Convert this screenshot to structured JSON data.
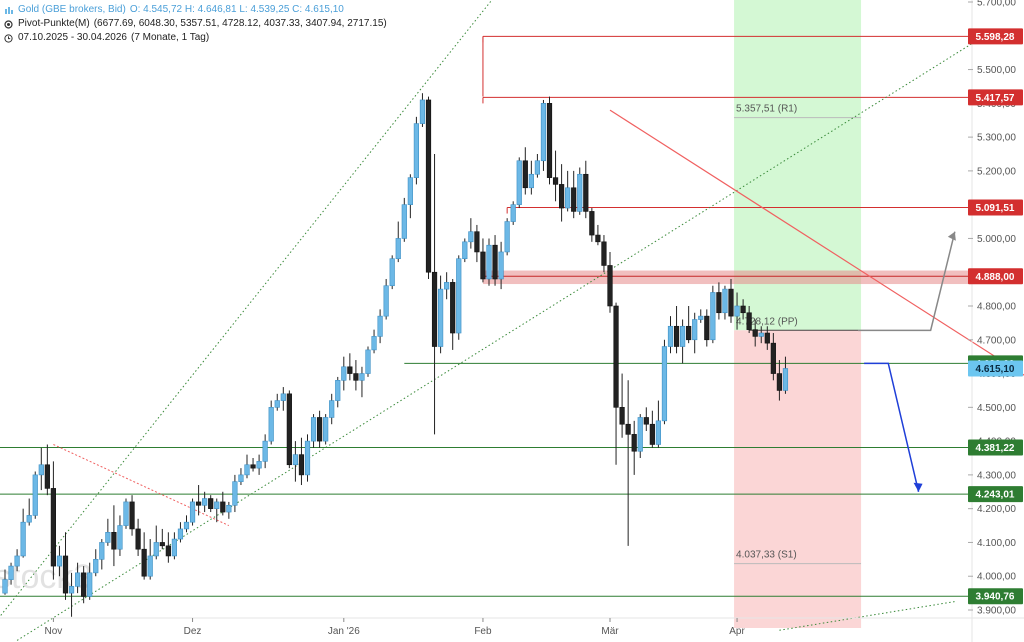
{
  "legend": {
    "instrument": "Gold (GBE brokers, Bid)",
    "ohlc": "O: 4.545,72  H: 4.646,81  L: 4.539,25  C: 4.615,10",
    "pivot": "Pivot-Punkte(M)",
    "pivot_values": "(6677.69, 6048.30, 5357.51, 4728.12, 4037.33, 3407.94, 2717.15)",
    "range": "07.10.2025 - 30.04.2026",
    "range_detail": "(7 Monate, 1 Tag)"
  },
  "watermark": "stock3",
  "colors": {
    "up": "#6cb8e6",
    "down": "#222222",
    "res": "#d32f2f",
    "sup": "#2e7d32",
    "price": "#4fb0e8",
    "trend": "#f06060",
    "arrow": "#1f3fd8",
    "gray": "#888888"
  },
  "chart_data": {
    "type": "candlestick",
    "instrument": "Gold (GBE brokers, Bid)",
    "ylim": [
      3860,
      5700
    ],
    "y_ticks": [
      "3.900,00",
      "4.000,00",
      "4.100,00",
      "4.200,00",
      "4.300,00",
      "4.400,00",
      "4.500,00",
      "4.600,00",
      "4.700,00",
      "4.800,00",
      "4.900,00",
      "5.000,00",
      "5.100,00",
      "5.200,00",
      "5.300,00",
      "5.400,00",
      "5.500,00",
      "5.600,00",
      "5.700,00"
    ],
    "x_ticks": [
      "Nov",
      "Dez",
      "Jan '26",
      "Feb",
      "Mär",
      "Apr"
    ],
    "candles": [
      [
        3950,
        3945,
        4020,
        3990
      ],
      [
        3990,
        3975,
        4040,
        4030
      ],
      [
        4030,
        4015,
        4080,
        4060
      ],
      [
        4060,
        4055,
        4200,
        4160
      ],
      [
        4160,
        4150,
        4230,
        4180
      ],
      [
        4180,
        4170,
        4310,
        4300
      ],
      [
        4300,
        4255,
        4380,
        4330
      ],
      [
        4330,
        4240,
        4390,
        4260
      ],
      [
        4260,
        3990,
        4340,
        4030
      ],
      [
        4030,
        4000,
        4090,
        4060
      ],
      [
        4060,
        3930,
        4130,
        3950
      ],
      [
        3950,
        3880,
        4010,
        3970
      ],
      [
        3970,
        3950,
        4040,
        4010
      ],
      [
        4010,
        3920,
        4030,
        3940
      ],
      [
        3940,
        3930,
        4040,
        4010
      ],
      [
        4010,
        4000,
        4080,
        4050
      ],
      [
        4050,
        4020,
        4110,
        4100
      ],
      [
        4100,
        4090,
        4170,
        4130
      ],
      [
        4130,
        4030,
        4210,
        4080
      ],
      [
        4080,
        4060,
        4180,
        4150
      ],
      [
        4150,
        4140,
        4230,
        4220
      ],
      [
        4220,
        4120,
        4240,
        4140
      ],
      [
        4140,
        4060,
        4170,
        4080
      ],
      [
        4080,
        3990,
        4130,
        4000
      ],
      [
        4000,
        3990,
        4110,
        4060
      ],
      [
        4060,
        4050,
        4150,
        4100
      ],
      [
        4100,
        4080,
        4140,
        4090
      ],
      [
        4090,
        4040,
        4130,
        4060
      ],
      [
        4060,
        4050,
        4130,
        4110
      ],
      [
        4110,
        4100,
        4160,
        4140
      ],
      [
        4140,
        4130,
        4180,
        4160
      ],
      [
        4160,
        4150,
        4230,
        4220
      ],
      [
        4220,
        4180,
        4270,
        4210
      ],
      [
        4210,
        4190,
        4250,
        4230
      ],
      [
        4230,
        4190,
        4240,
        4200
      ],
      [
        4200,
        4160,
        4230,
        4220
      ],
      [
        4220,
        4180,
        4250,
        4190
      ],
      [
        4190,
        4170,
        4220,
        4210
      ],
      [
        4210,
        4190,
        4300,
        4280
      ],
      [
        4280,
        4270,
        4320,
        4300
      ],
      [
        4300,
        4290,
        4360,
        4330
      ],
      [
        4330,
        4310,
        4350,
        4320
      ],
      [
        4320,
        4300,
        4360,
        4340
      ],
      [
        4340,
        4320,
        4420,
        4400
      ],
      [
        4400,
        4390,
        4520,
        4500
      ],
      [
        4500,
        4490,
        4540,
        4520
      ],
      [
        4520,
        4490,
        4560,
        4540
      ],
      [
        4540,
        4320,
        4550,
        4330
      ],
      [
        4330,
        4280,
        4400,
        4360
      ],
      [
        4360,
        4270,
        4410,
        4300
      ],
      [
        4300,
        4280,
        4420,
        4400
      ],
      [
        4400,
        4380,
        4480,
        4470
      ],
      [
        4470,
        4380,
        4490,
        4400
      ],
      [
        4400,
        4390,
        4480,
        4470
      ],
      [
        4470,
        4450,
        4540,
        4520
      ],
      [
        4520,
        4500,
        4590,
        4580
      ],
      [
        4580,
        4550,
        4650,
        4620
      ],
      [
        4620,
        4580,
        4660,
        4600
      ],
      [
        4600,
        4550,
        4640,
        4580
      ],
      [
        4580,
        4530,
        4620,
        4600
      ],
      [
        4600,
        4590,
        4680,
        4670
      ],
      [
        4670,
        4660,
        4730,
        4710
      ],
      [
        4710,
        4690,
        4790,
        4770
      ],
      [
        4770,
        4760,
        4880,
        4860
      ],
      [
        4860,
        4850,
        4950,
        4940
      ],
      [
        4940,
        4930,
        5050,
        5000
      ],
      [
        5000,
        4990,
        5120,
        5100
      ],
      [
        5100,
        5060,
        5190,
        5180
      ],
      [
        5180,
        5160,
        5360,
        5340
      ],
      [
        5340,
        5330,
        5430,
        5410
      ],
      [
        5410,
        4880,
        5420,
        4900
      ],
      [
        4900,
        4420,
        5250,
        4680
      ],
      [
        4680,
        4660,
        4890,
        4850
      ],
      [
        4850,
        4820,
        4900,
        4870
      ],
      [
        4870,
        4670,
        4880,
        4720
      ],
      [
        4720,
        4700,
        4950,
        4940
      ],
      [
        4940,
        4930,
        5000,
        4990
      ],
      [
        4990,
        4970,
        5060,
        5020
      ],
      [
        5020,
        4930,
        5040,
        4960
      ],
      [
        4960,
        4870,
        5000,
        4880
      ],
      [
        4880,
        4860,
        5000,
        4980
      ],
      [
        4980,
        4860,
        5010,
        4880
      ],
      [
        4880,
        4850,
        4990,
        4960
      ],
      [
        4960,
        4950,
        5060,
        5050
      ],
      [
        5050,
        5040,
        5110,
        5100
      ],
      [
        5100,
        5090,
        5240,
        5230
      ],
      [
        5230,
        5130,
        5270,
        5150
      ],
      [
        5150,
        5130,
        5230,
        5190
      ],
      [
        5190,
        5180,
        5250,
        5230
      ],
      [
        5230,
        5200,
        5410,
        5400
      ],
      [
        5400,
        5160,
        5420,
        5180
      ],
      [
        5180,
        5110,
        5260,
        5160
      ],
      [
        5160,
        5050,
        5220,
        5090
      ],
      [
        5090,
        5080,
        5200,
        5150
      ],
      [
        5150,
        5060,
        5200,
        5080
      ],
      [
        5080,
        5070,
        5210,
        5190
      ],
      [
        5190,
        5060,
        5230,
        5080
      ],
      [
        5080,
        4990,
        5090,
        5010
      ],
      [
        5010,
        4980,
        5040,
        4990
      ],
      [
        4990,
        4900,
        5010,
        4920
      ],
      [
        4920,
        4780,
        4960,
        4800
      ],
      [
        4800,
        4330,
        4810,
        4500
      ],
      [
        4500,
        4410,
        4600,
        4450
      ],
      [
        4450,
        4090,
        4580,
        4420
      ],
      [
        4420,
        4300,
        4460,
        4370
      ],
      [
        4370,
        4350,
        4480,
        4470
      ],
      [
        4470,
        4430,
        4500,
        4450
      ],
      [
        4450,
        4380,
        4490,
        4390
      ],
      [
        4390,
        4380,
        4520,
        4460
      ],
      [
        4460,
        4450,
        4700,
        4680
      ],
      [
        4680,
        4660,
        4770,
        4740
      ],
      [
        4740,
        4660,
        4800,
        4680
      ],
      [
        4680,
        4630,
        4760,
        4740
      ],
      [
        4740,
        4690,
        4800,
        4700
      ],
      [
        4700,
        4660,
        4780,
        4760
      ],
      [
        4760,
        4750,
        4790,
        4770
      ],
      [
        4770,
        4680,
        4790,
        4700
      ],
      [
        4700,
        4690,
        4860,
        4840
      ],
      [
        4840,
        4760,
        4870,
        4780
      ],
      [
        4780,
        4760,
        4860,
        4850
      ],
      [
        4850,
        4750,
        4880,
        4770
      ],
      [
        4770,
        4730,
        4840,
        4800
      ],
      [
        4800,
        4760,
        4820,
        4780
      ],
      [
        4780,
        4720,
        4800,
        4730
      ],
      [
        4730,
        4680,
        4760,
        4710
      ],
      [
        4710,
        4690,
        4740,
        4720
      ],
      [
        4720,
        4670,
        4740,
        4690
      ],
      [
        4690,
        4580,
        4720,
        4600
      ],
      [
        4600,
        4520,
        4640,
        4550
      ],
      [
        4550,
        4540,
        4650,
        4615
      ]
    ],
    "x_tick_index": [
      8,
      31,
      56,
      79,
      100,
      121
    ],
    "resistance_levels": [
      {
        "value": 5598.28,
        "label": "5.598,28",
        "x_from": 79
      },
      {
        "value": 5417.57,
        "label": "5.417,57",
        "x_from": 79
      },
      {
        "value": 5091.51,
        "label": "5.091,51",
        "x_from": 83
      }
    ],
    "resistance_zone": {
      "value": 4888.0,
      "label": "4.888,00",
      "from": 4865,
      "to": 4905,
      "x_from": 79
    },
    "support_levels": [
      {
        "value": 4381.22,
        "label": "4.381,22"
      },
      {
        "value": 4243.01,
        "label": "4.243,01"
      },
      {
        "value": 3940.76,
        "label": "3.940,76"
      }
    ],
    "hidden_label": {
      "value": 4630.0,
      "label": "4.630,00"
    },
    "line_4630_from": 66,
    "current_price": {
      "value": 4615.1,
      "label": "4.615,10"
    },
    "pivots": [
      {
        "name": "R1",
        "value": 5357.51,
        "label": "5.357,51 (R1)"
      },
      {
        "name": "PP",
        "value": 4728.12,
        "label": "4.728,12 (PP)"
      },
      {
        "name": "S1",
        "value": 4037.33,
        "label": "4.037,33 (S1)"
      }
    ],
    "pivot_zone_from": 121,
    "pivot_zone_to": 141,
    "trend_lines": [
      {
        "from": [
          100,
          5380
        ],
        "to": [
          182,
          4440
        ]
      },
      {
        "from": [
          8,
          4390
        ],
        "to": [
          37,
          4150
        ]
      }
    ],
    "channel_lines": [
      {
        "from": [
          -4,
          3810
        ],
        "to": [
          86,
          5830
        ]
      },
      {
        "from": [
          2,
          3810
        ],
        "to": [
          161,
          5590
        ]
      },
      {
        "from": [
          128,
          3840
        ],
        "to": [
          157,
          3925
        ]
      }
    ],
    "projection_up": {
      "from": [
        141,
        4728
      ],
      "via": [
        153,
        4728
      ],
      "to": [
        157,
        5020
      ]
    },
    "projection_down": {
      "from": [
        142,
        4630
      ],
      "via": [
        146,
        4630
      ],
      "to": [
        151,
        4250
      ]
    }
  }
}
